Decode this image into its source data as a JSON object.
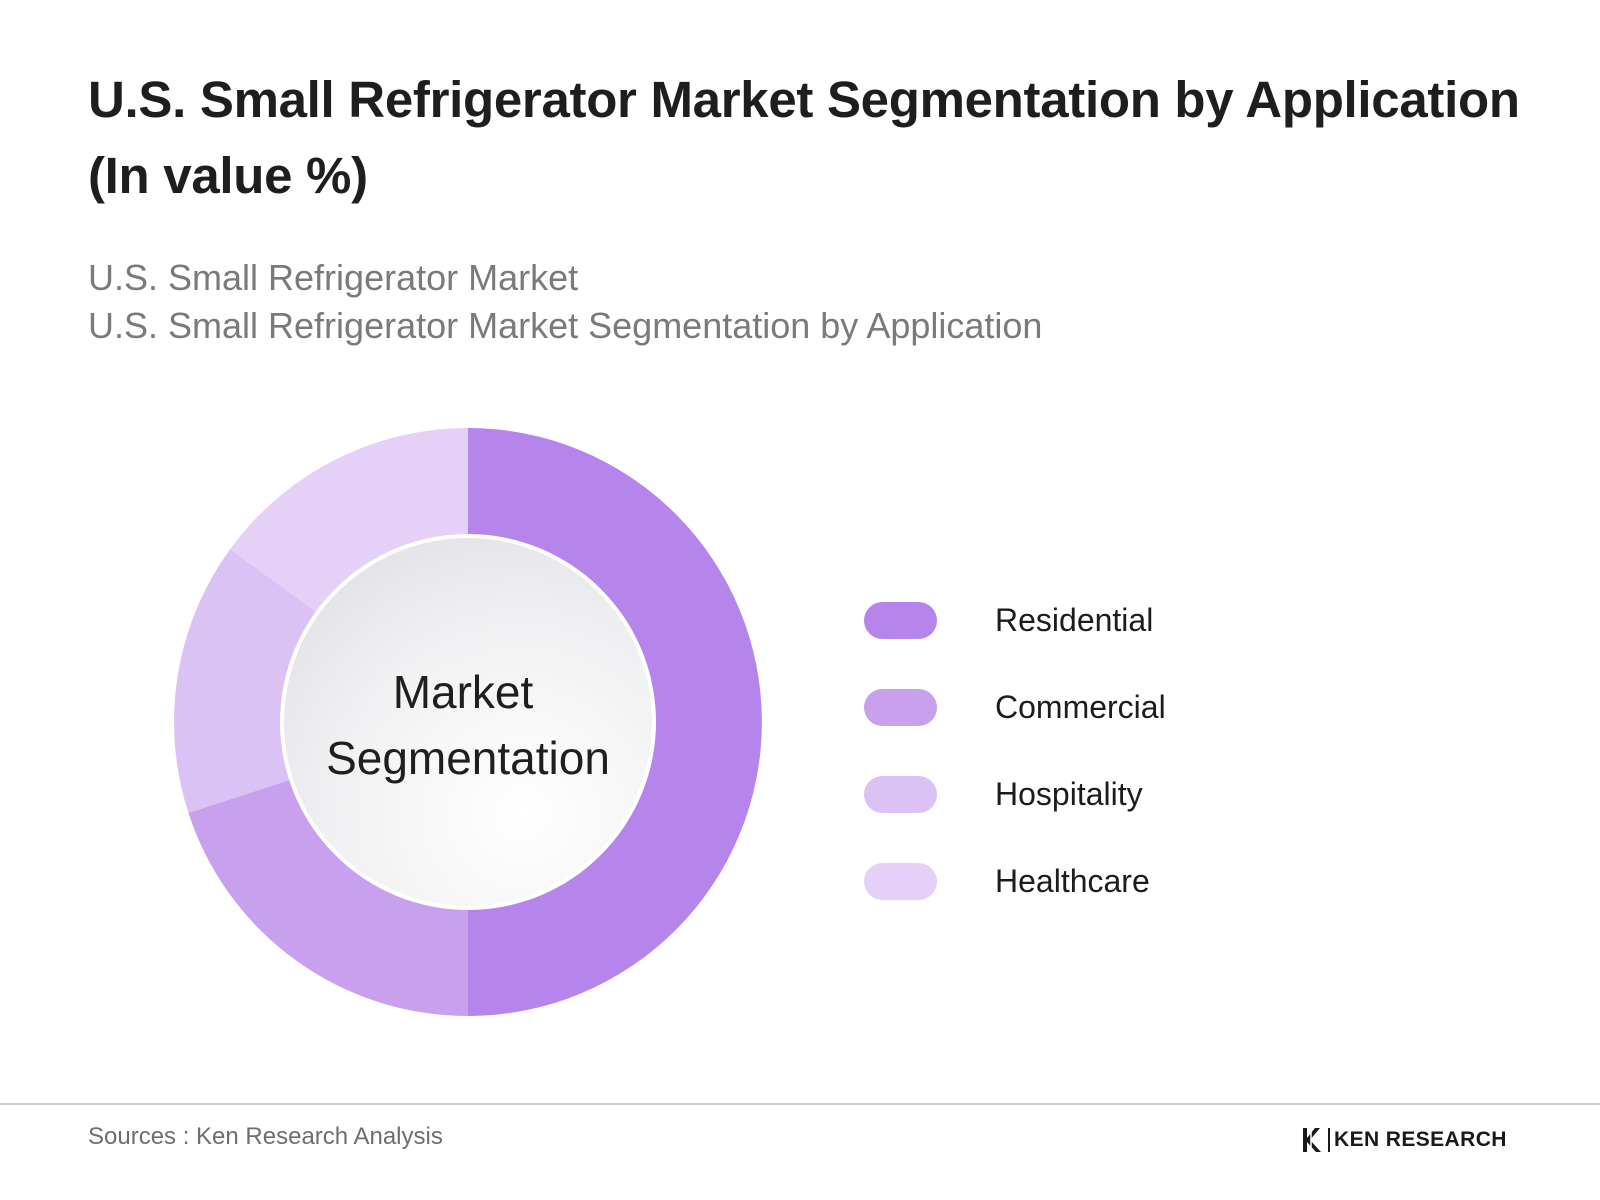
{
  "title": "U.S. Small Refrigerator Market Segmentation by Application (In value %)",
  "subtitle_lines": [
    "U.S. Small Refrigerator Market",
    "U.S. Small Refrigerator Market Segmentation by Application"
  ],
  "chart_data": {
    "type": "pie",
    "variant": "donut",
    "center_label": [
      "Market",
      "Segmentation"
    ],
    "categories": [
      "Residential",
      "Commercial",
      "Hospitality",
      "Healthcare"
    ],
    "values": [
      50,
      20,
      15,
      15
    ],
    "colors": [
      "#b585ec",
      "#c8a0ee",
      "#dbc2f5",
      "#e5d0f8"
    ],
    "legend_position": "right",
    "start": "12 o'clock",
    "direction": "clockwise"
  },
  "footer": {
    "source": "Sources : Ken Research Analysis",
    "brand": "KEN RESEARCH"
  }
}
